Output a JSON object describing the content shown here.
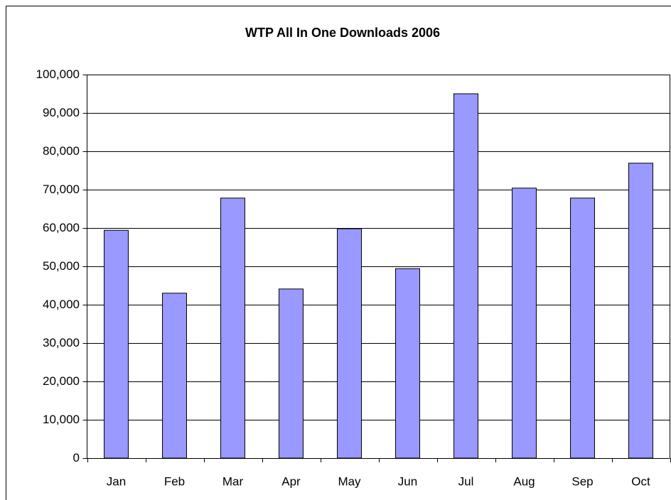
{
  "chart_data": {
    "type": "bar",
    "title": "WTP All In One Downloads 2006",
    "categories": [
      "Jan",
      "Feb",
      "Mar",
      "Apr",
      "May",
      "Jun",
      "Jul",
      "Aug",
      "Sep",
      "Oct"
    ],
    "values": [
      59400,
      43000,
      67800,
      44100,
      59800,
      49400,
      95000,
      70400,
      67800,
      76900
    ],
    "color": "#9999ff",
    "ylim": [
      0,
      100000
    ],
    "yticks": [
      0,
      {
        "value": 10000,
        "label": "10,000"
      },
      {
        "value": 20000,
        "label": "20,000"
      },
      {
        "value": 30000,
        "label": "30,000"
      },
      {
        "value": 40000,
        "label": "40,000"
      },
      {
        "value": 50000,
        "label": "50,000"
      },
      {
        "value": 60000,
        "label": "60,000"
      },
      {
        "value": 70000,
        "label": "70,000"
      },
      {
        "value": 80000,
        "label": "80,000"
      },
      {
        "value": 90000,
        "label": "90,000"
      },
      {
        "value": 100000,
        "label": "100,000"
      }
    ],
    "grid": true
  }
}
